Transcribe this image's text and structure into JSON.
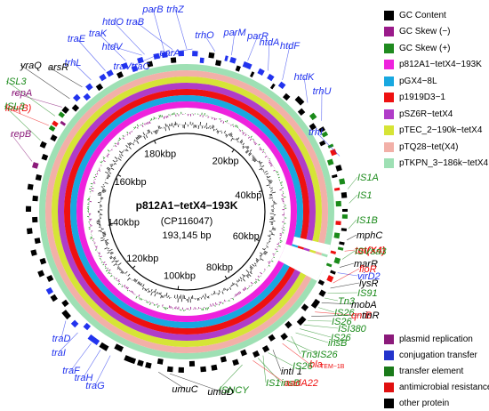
{
  "plasmid": {
    "name": "p812A1−tetX4−193K",
    "accession": "(CP116047)",
    "length": "193,145 bp"
  },
  "scale_labels": [
    "20kbp",
    "40kbp",
    "60kbp",
    "80kbp",
    "100kbp",
    "120kbp",
    "140kbp",
    "160kbp",
    "180kbp"
  ],
  "legend_tracks": [
    {
      "label": "GC Content",
      "color": "#000000"
    },
    {
      "label": "GC Skew (−)",
      "color": "#9a1a8a"
    },
    {
      "label": "GC Skew (+)",
      "color": "#1f8a1f"
    },
    {
      "label": "p812A1−tetX4−193K",
      "color": "#ee22dd"
    },
    {
      "label": "pGX4−8L",
      "color": "#18a8e0"
    },
    {
      "label": "p1919D3−1",
      "color": "#ee1111"
    },
    {
      "label": "pSZ6R−tetX4",
      "color": "#b03cc8"
    },
    {
      "label": "pTEC_2−190k−tetX4",
      "color": "#d6e436"
    },
    {
      "label": "pTQ28−tet(X4)",
      "color": "#f2b0a8"
    },
    {
      "label": "pTKPN_3−186k−tetX4",
      "color": "#9ee0b4"
    }
  ],
  "legend_categories": [
    {
      "label": "plasmid replication",
      "color": "#8b1a7a"
    },
    {
      "label": "conjugation transfer",
      "color": "#2233cc"
    },
    {
      "label": "transfer element",
      "color": "#1a7a1a"
    },
    {
      "label": "antimicrobial resistance",
      "color": "#e01010"
    },
    {
      "label": "other protein",
      "color": "#000000"
    }
  ],
  "colors": {
    "replication": "#8b1a7a",
    "conjugation": "#2233ee",
    "transfer": "#1a8a1a",
    "resistance": "#ee1010",
    "other": "#000000"
  },
  "gene_labels": [
    {
      "text": "parB",
      "cat": "conjugation",
      "italic": true
    },
    {
      "text": "trhZ",
      "cat": "conjugation",
      "italic": true
    },
    {
      "text": "htdO",
      "cat": "conjugation",
      "italic": true
    },
    {
      "text": "traB",
      "cat": "conjugation",
      "italic": true
    },
    {
      "text": "traE",
      "cat": "conjugation",
      "italic": true
    },
    {
      "text": "traK",
      "cat": "conjugation",
      "italic": true
    },
    {
      "text": "htdV",
      "cat": "conjugation",
      "italic": true
    },
    {
      "text": "traVtraC",
      "cat": "conjugation",
      "italic": true
    },
    {
      "text": "parA",
      "cat": "conjugation",
      "italic": true
    },
    {
      "text": "trhO",
      "cat": "conjugation",
      "italic": true
    },
    {
      "text": "parM",
      "cat": "conjugation",
      "italic": true
    },
    {
      "text": "parR",
      "cat": "conjugation",
      "italic": true
    },
    {
      "text": "htdA",
      "cat": "conjugation",
      "italic": true
    },
    {
      "text": "htdF",
      "cat": "conjugation",
      "italic": true
    },
    {
      "text": "htdK",
      "cat": "conjugation",
      "italic": true
    },
    {
      "text": "trhU",
      "cat": "conjugation",
      "italic": true
    },
    {
      "text": "trhI",
      "cat": "conjugation",
      "italic": true
    },
    {
      "text": "trhL",
      "cat": "conjugation",
      "italic": true
    },
    {
      "text": "yraQ",
      "cat": "other",
      "italic": true
    },
    {
      "text": "arsR",
      "cat": "other",
      "italic": true
    },
    {
      "text": "repA",
      "cat": "replication",
      "italic": true
    },
    {
      "text": "lnu(B)",
      "cat": "resistance",
      "italic": true
    },
    {
      "text": "ISL3",
      "cat": "transfer",
      "italic": true
    },
    {
      "text": "ISL3",
      "cat": "transfer",
      "italic": true
    },
    {
      "text": "repB",
      "cat": "replication",
      "italic": true
    },
    {
      "text": "IS1A",
      "cat": "transfer",
      "italic": true
    },
    {
      "text": "IS1",
      "cat": "transfer",
      "italic": true
    },
    {
      "text": "IS1B",
      "cat": "transfer",
      "italic": true
    },
    {
      "text": "mphC",
      "cat": "other",
      "italic": true
    },
    {
      "text": "tet(X4)",
      "cat": "resistance",
      "italic": true,
      "bold": true
    },
    {
      "text": "ISVsa3",
      "cat": "transfer",
      "italic": true
    },
    {
      "text": "marR",
      "cat": "other",
      "italic": true
    },
    {
      "text": "virD2",
      "cat": "conjugation",
      "italic": true
    },
    {
      "text": "floR",
      "cat": "resistance",
      "italic": true
    },
    {
      "text": "lysR",
      "cat": "other",
      "italic": true
    },
    {
      "text": "IS91",
      "cat": "transfer",
      "italic": true
    },
    {
      "text": "Tn3",
      "cat": "transfer",
      "italic": true
    },
    {
      "text": "mobA",
      "cat": "other",
      "italic": true
    },
    {
      "text": "IS26",
      "cat": "transfer",
      "italic": true
    },
    {
      "text": "qnrB",
      "cat": "resistance",
      "italic": true
    },
    {
      "text": "tinR",
      "cat": "other",
      "italic": true
    },
    {
      "text": "IS26",
      "cat": "transfer",
      "italic": true
    },
    {
      "text": "ISI380",
      "cat": "transfer",
      "italic": true
    },
    {
      "text": "IS26",
      "cat": "transfer",
      "italic": true
    },
    {
      "text": "insB",
      "cat": "transfer",
      "italic": true
    },
    {
      "text": "Tn3",
      "cat": "transfer",
      "italic": true
    },
    {
      "text": "IS26",
      "cat": "transfer",
      "italic": true
    },
    {
      "text": "bla",
      "cat": "resistance",
      "italic": true
    },
    {
      "text": "TEM−1B",
      "cat": "resistance",
      "italic": false
    },
    {
      "text": "intI 1",
      "cat": "other",
      "italic": true
    },
    {
      "text": "IS26",
      "cat": "transfer",
      "italic": true
    },
    {
      "text": "IS1",
      "cat": "transfer",
      "italic": true
    },
    {
      "text": "insB",
      "cat": "transfer",
      "italic": true
    },
    {
      "text": "aadA22",
      "cat": "resistance",
      "italic": true
    },
    {
      "text": "ISNCY",
      "cat": "transfer",
      "italic": true
    },
    {
      "text": "umuC",
      "cat": "other",
      "italic": true
    },
    {
      "text": "umuD",
      "cat": "other",
      "italic": true
    },
    {
      "text": "traG",
      "cat": "conjugation",
      "italic": true
    },
    {
      "text": "traH",
      "cat": "conjugation",
      "italic": true
    },
    {
      "text": "traF",
      "cat": "conjugation",
      "italic": true
    },
    {
      "text": "traI",
      "cat": "conjugation",
      "italic": true
    },
    {
      "text": "traD",
      "cat": "conjugation",
      "italic": true
    }
  ]
}
